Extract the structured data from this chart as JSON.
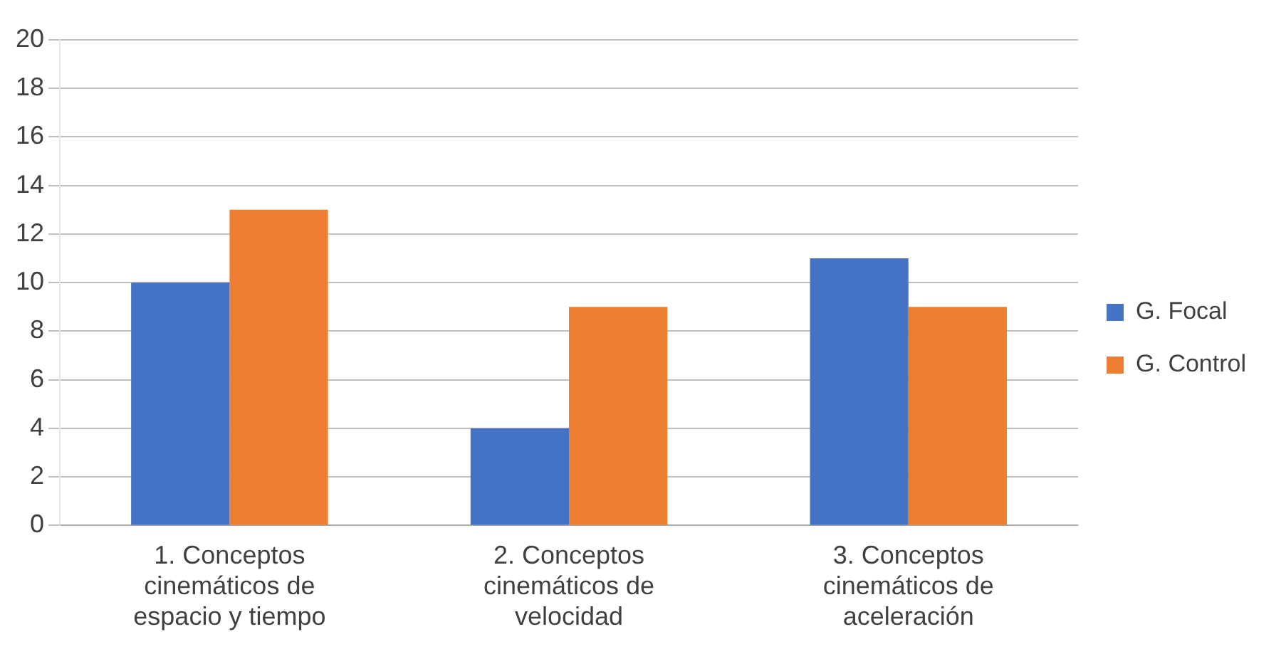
{
  "chart_data": {
    "type": "bar",
    "categories": [
      "1. Conceptos cinemáticos de espacio y tiempo",
      "2. Conceptos cinemáticos de velocidad",
      "3. Conceptos cinemáticos de aceleración"
    ],
    "series": [
      {
        "name": "G. Focal",
        "color": "#4472c4",
        "values": [
          10,
          4,
          11
        ]
      },
      {
        "name": "G. Control",
        "color": "#ed7d31",
        "values": [
          13,
          9,
          9
        ]
      }
    ],
    "ylim": [
      0,
      20
    ],
    "yticks": [
      0,
      2,
      4,
      6,
      8,
      10,
      12,
      14,
      16,
      18,
      20
    ],
    "grid": "y",
    "legend": "right"
  }
}
